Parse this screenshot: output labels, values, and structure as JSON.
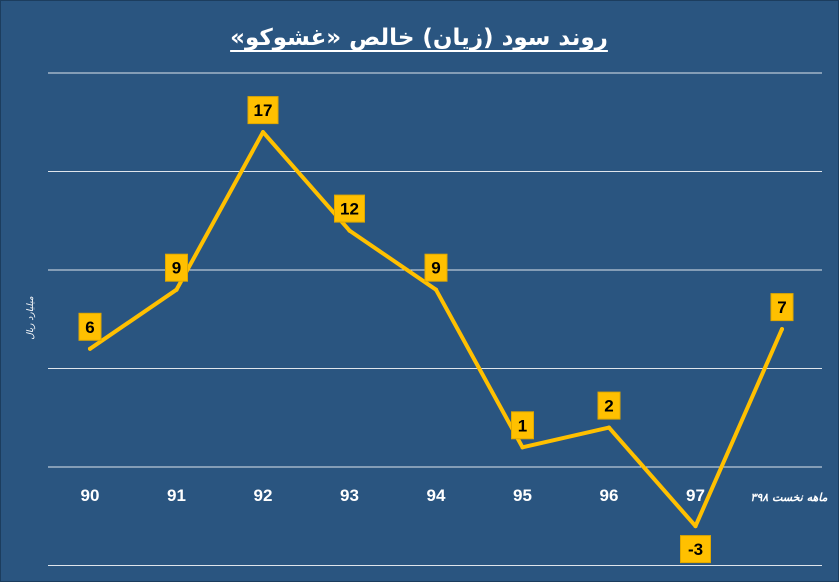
{
  "chart_data": {
    "type": "line",
    "title": "روند سود (زیان) خالص «غشوکو»",
    "ylabel": "میلیارد ریال",
    "xlabel": "",
    "categories": [
      "90",
      "91",
      "92",
      "93",
      "94",
      "95",
      "96",
      "97",
      "۳ماهه نخست ۹۸"
    ],
    "series": [
      {
        "values": [
          6,
          9,
          17,
          12,
          9,
          1,
          2,
          -3,
          7
        ]
      }
    ],
    "data_labels": [
      "6",
      "9",
      "17",
      "12",
      "9",
      "1",
      "2",
      "-3",
      "7"
    ],
    "ylim": [
      -5,
      20
    ],
    "y_gridlines": [
      -5,
      0,
      5,
      10,
      15,
      20
    ],
    "grid": true,
    "legend": "none",
    "colors": {
      "background": "#2a5580",
      "outer_border": "#1c3d5e",
      "gridline": "#ffffff",
      "line": "#ffc000",
      "label_box": "#ffc000",
      "label_text": "#000000",
      "text": "#ffffff"
    }
  }
}
